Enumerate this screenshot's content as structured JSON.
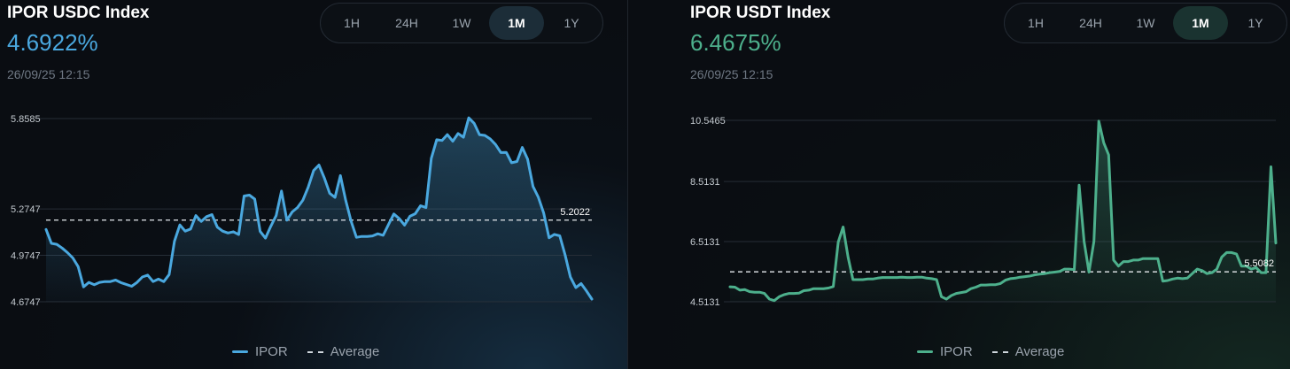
{
  "colors": {
    "usdc": "#4aa8df",
    "usdt": "#4db08c"
  },
  "panels": [
    {
      "title": "IPOR USDC Index",
      "value": "4.6922%",
      "date": "26/09/25 12:15",
      "periods": [
        "1H",
        "24H",
        "1W",
        "1M",
        "1Y"
      ],
      "active_period": "1M",
      "legend": {
        "series": "IPOR",
        "average": "Average"
      }
    },
    {
      "title": "IPOR USDT Index",
      "value": "6.4675%",
      "date": "26/09/25 12:15",
      "periods": [
        "1H",
        "24H",
        "1W",
        "1M",
        "1Y"
      ],
      "active_period": "1M",
      "legend": {
        "series": "IPOR",
        "average": "Average"
      }
    }
  ],
  "chart_data": [
    {
      "type": "area",
      "title": "IPOR USDC Index",
      "series": [
        {
          "name": "IPOR",
          "values": [
            5.142,
            5.052,
            5.046,
            5.022,
            4.992,
            4.958,
            4.902,
            4.771,
            4.8,
            4.785,
            4.8,
            4.805,
            4.805,
            4.815,
            4.798,
            4.787,
            4.775,
            4.8,
            4.835,
            4.847,
            4.805,
            4.821,
            4.805,
            4.85,
            5.066,
            5.171,
            5.131,
            5.145,
            5.232,
            5.194,
            5.225,
            5.238,
            5.157,
            5.131,
            5.119,
            5.127,
            5.109,
            5.358,
            5.364,
            5.338,
            5.13,
            5.086,
            5.162,
            5.232,
            5.39,
            5.202,
            5.255,
            5.284,
            5.332,
            5.416,
            5.523,
            5.558,
            5.476,
            5.376,
            5.349,
            5.49,
            5.33,
            5.197,
            5.091,
            5.097,
            5.097,
            5.1,
            5.114,
            5.104,
            5.174,
            5.242,
            5.212,
            5.17,
            5.227,
            5.244,
            5.295,
            5.283,
            5.602,
            5.722,
            5.717,
            5.755,
            5.712,
            5.762,
            5.738,
            5.863,
            5.828,
            5.754,
            5.75,
            5.727,
            5.691,
            5.639,
            5.64,
            5.573,
            5.581,
            5.672,
            5.596,
            5.42,
            5.35,
            5.249,
            5.088,
            5.11,
            5.101,
            4.978,
            4.834,
            4.766,
            4.792,
            4.744,
            4.692
          ]
        }
      ],
      "average": {
        "value": 5.2022,
        "label": "5.2022"
      },
      "yticks": [
        "5.8585",
        "5.2747",
        "4.9747",
        "4.6747"
      ],
      "ylim": [
        4.6747,
        5.8585
      ]
    },
    {
      "type": "area",
      "title": "IPOR USDT Index",
      "series": [
        {
          "name": "IPOR",
          "values": [
            5.01,
            5.0,
            4.9,
            4.92,
            4.85,
            4.83,
            4.83,
            4.79,
            4.6,
            4.55,
            4.68,
            4.75,
            4.79,
            4.79,
            4.8,
            4.88,
            4.9,
            4.95,
            4.95,
            4.95,
            4.97,
            5.02,
            6.5,
            7.0,
            6.0,
            5.25,
            5.25,
            5.25,
            5.27,
            5.27,
            5.3,
            5.32,
            5.32,
            5.32,
            5.32,
            5.33,
            5.32,
            5.32,
            5.33,
            5.33,
            5.3,
            5.28,
            5.25,
            4.68,
            4.6,
            4.72,
            4.79,
            4.82,
            4.85,
            4.95,
            5.0,
            5.07,
            5.07,
            5.08,
            5.08,
            5.12,
            5.23,
            5.28,
            5.3,
            5.33,
            5.35,
            5.37,
            5.41,
            5.43,
            5.45,
            5.48,
            5.5,
            5.52,
            5.6,
            5.6,
            5.58,
            8.39,
            6.52,
            5.5,
            6.52,
            10.52,
            9.8,
            9.4,
            5.9,
            5.7,
            5.85,
            5.85,
            5.9,
            5.9,
            5.95,
            5.95,
            5.95,
            5.95,
            5.2,
            5.22,
            5.27,
            5.3,
            5.28,
            5.3,
            5.45,
            5.6,
            5.55,
            5.45,
            5.48,
            5.6,
            6.0,
            6.15,
            6.15,
            6.1,
            5.7,
            5.7,
            5.6,
            5.65,
            5.48,
            5.48,
            9.0,
            6.4675
          ]
        }
      ],
      "average": {
        "value": 5.5082,
        "label": "5.5082"
      },
      "yticks": [
        "10.5465",
        "8.5131",
        "6.5131",
        "4.5131"
      ],
      "ylim": [
        4.5131,
        10.5465
      ]
    }
  ]
}
